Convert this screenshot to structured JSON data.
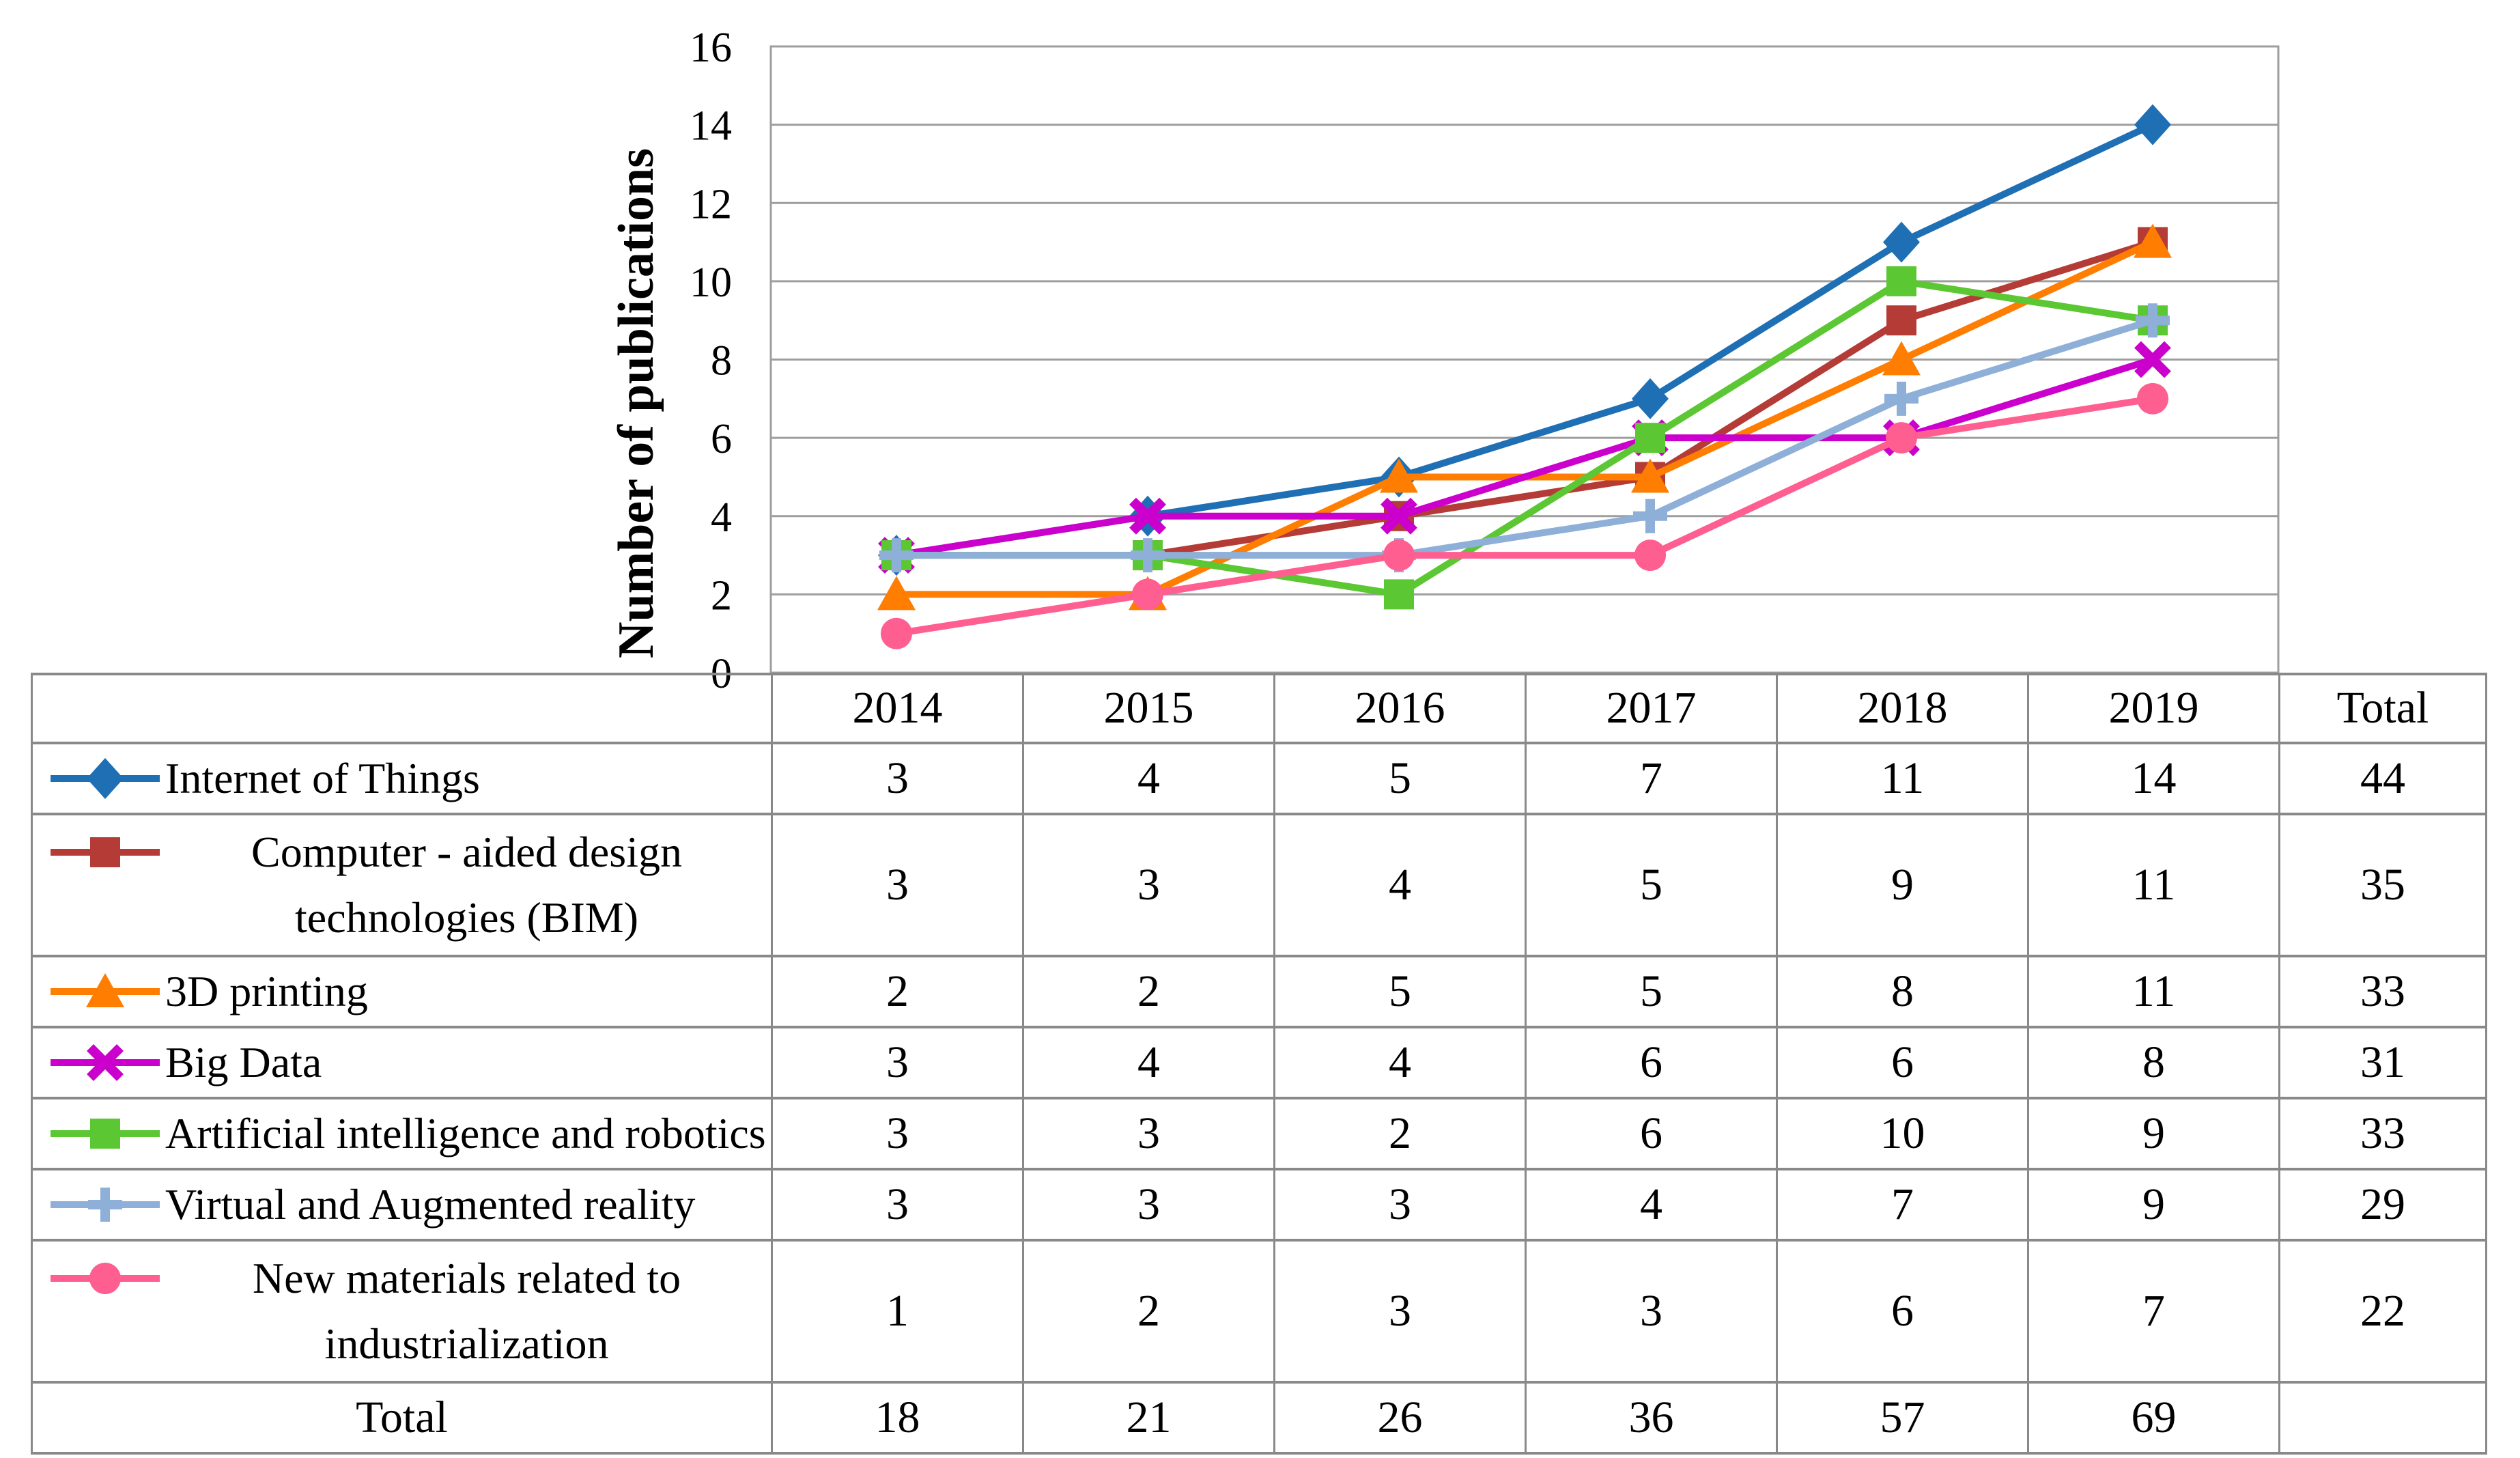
{
  "chart_data": {
    "type": "line",
    "title": "",
    "xlabel": "",
    "ylabel": "Number of publications",
    "x": [
      "2014",
      "2015",
      "2016",
      "2017",
      "2018",
      "2019"
    ],
    "ylim": [
      0,
      16
    ],
    "ytick_step": 2,
    "grid": true,
    "legend_position": "table-left",
    "gridline_color": "#9E9E9E",
    "series": [
      {
        "name": "Internet of Things",
        "marker": "diamond",
        "color": "#1F6FB5",
        "values": [
          3,
          4,
          5,
          7,
          11,
          14
        ],
        "total": 44
      },
      {
        "name": "Computer - aided design technologies (BIM)",
        "label_lines": [
          "Computer - aided design",
          "technologies (BIM)"
        ],
        "marker": "square",
        "color": "#B43B36",
        "values": [
          3,
          3,
          4,
          5,
          9,
          11
        ],
        "total": 35
      },
      {
        "name": "3D printing",
        "marker": "triangle",
        "color": "#FF7D01",
        "values": [
          2,
          2,
          5,
          5,
          8,
          11
        ],
        "total": 33
      },
      {
        "name": "Big Data",
        "marker": "x",
        "color": "#CC00CC",
        "values": [
          3,
          4,
          4,
          6,
          6,
          8
        ],
        "total": 31
      },
      {
        "name": "Artificial intelligence and robotics",
        "marker": "square",
        "color": "#5BC732",
        "values": [
          3,
          3,
          2,
          6,
          10,
          9
        ],
        "total": 33
      },
      {
        "name": "Virtual and Augmented reality",
        "marker": "plus",
        "color": "#8EAFD7",
        "values": [
          3,
          3,
          3,
          4,
          7,
          9
        ],
        "total": 29
      },
      {
        "name": "New materials related to industrialization",
        "label_lines": [
          "New materials related to",
          "industrialization"
        ],
        "marker": "circle",
        "color": "#FF5E91",
        "values": [
          1,
          2,
          3,
          3,
          6,
          7
        ],
        "total": 22
      }
    ]
  },
  "table": {
    "col_headers": [
      "2014",
      "2015",
      "2016",
      "2017",
      "2018",
      "2019",
      "Total"
    ],
    "total_row": {
      "label": "Total",
      "values": [
        "18",
        "21",
        "26",
        "36",
        "57",
        "69"
      ]
    }
  }
}
